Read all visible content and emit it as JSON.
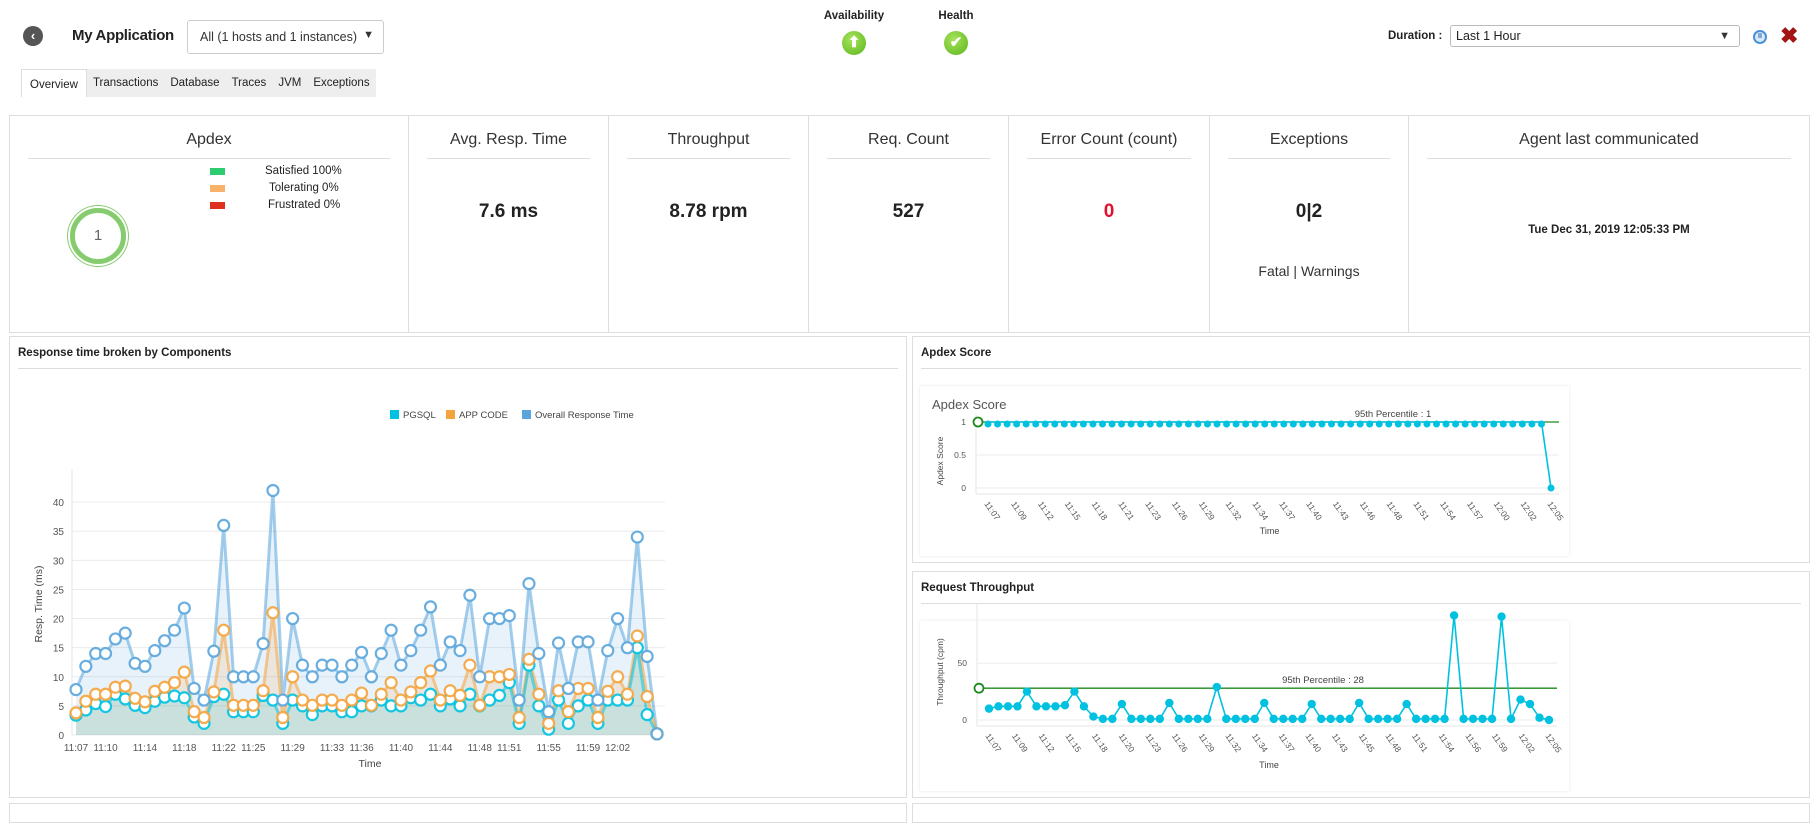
{
  "header": {
    "back_icon": "chevron-left-circle-icon",
    "app_title": "My Application",
    "host_select": "All (1 hosts and 1 instances)",
    "availability_label": "Availability",
    "availability_icon": "arrow-up-circle-icon",
    "health_label": "Health",
    "health_icon": "check-circle-icon",
    "duration_label": "Duration :",
    "duration_value": "Last 1 Hour",
    "pause_icon": "pause-icon",
    "close_icon": "close-icon"
  },
  "tabs": [
    {
      "label": "Overview",
      "active": true
    },
    {
      "label": "Transactions"
    },
    {
      "label": "Database"
    },
    {
      "label": "Traces"
    },
    {
      "label": "JVM"
    },
    {
      "label": "Exceptions"
    }
  ],
  "metrics": {
    "apdex": {
      "title": "Apdex",
      "score": "1",
      "legend": [
        {
          "label": "Satisfied 100%",
          "color": "#2ecc71"
        },
        {
          "label": "Tolerating 0%",
          "color": "#f8b26a"
        },
        {
          "label": "Frustrated 0%",
          "color": "#e03020"
        }
      ]
    },
    "avg_resp": {
      "title": "Avg. Resp. Time",
      "value": "7.6 ms"
    },
    "throughput": {
      "title": "Throughput",
      "value": "8.78 rpm"
    },
    "req_count": {
      "title": "Req. Count",
      "value": "527"
    },
    "error_count": {
      "title": "Error Count (count)",
      "value": "0",
      "color": "#e0102f"
    },
    "exceptions": {
      "title": "Exceptions",
      "value": "0|2",
      "sub": "Fatal | Warnings"
    },
    "agent": {
      "title": "Agent last communicated",
      "value": "Tue Dec 31, 2019 12:05:33 PM"
    }
  },
  "panels": {
    "response": "Response time broken by Components",
    "apdex": "Apdex Score",
    "throughput": "Request Throughput"
  },
  "chart_data": [
    {
      "type": "area",
      "title": "",
      "xlabel": "Time",
      "ylabel": "Resp. Time (ms)",
      "ylim": [
        0,
        45
      ],
      "yticks": [
        0,
        5,
        10,
        15,
        20,
        25,
        30,
        35,
        40
      ],
      "grid": true,
      "legend": "top-right",
      "xticks": [
        "11:07",
        "11:10",
        "11:14",
        "11:18",
        "11:22",
        "11:25",
        "11:29",
        "11:33",
        "11:36",
        "11:40",
        "11:44",
        "11:48",
        "11:51",
        "11:55",
        "11:59",
        "12:02"
      ],
      "xtick_index": [
        0,
        3,
        7,
        11,
        15,
        18,
        22,
        26,
        29,
        33,
        37,
        41,
        44,
        48,
        52,
        55
      ],
      "series": [
        {
          "name": "Overall Response Time",
          "color": "#5aa5dc",
          "values": [
            7.8,
            11.8,
            14,
            14,
            16.5,
            17.5,
            12.3,
            11.8,
            14.5,
            16.2,
            18,
            21.8,
            8,
            6,
            14.4,
            36,
            10,
            10,
            10,
            15.7,
            42,
            6,
            20,
            12,
            10,
            12,
            12,
            10,
            12,
            14.2,
            10,
            14,
            18,
            12,
            14.5,
            18,
            22,
            12,
            16,
            14.5,
            24,
            10,
            20,
            20,
            20.5,
            6,
            26,
            14,
            4,
            15.8,
            8,
            16,
            16,
            6,
            14.5,
            20,
            15,
            34,
            13.5,
            0.2
          ]
        },
        {
          "name": "APP CODE",
          "color": "#f5a33c",
          "values": [
            3.8,
            5.8,
            7,
            7,
            8.2,
            8.4,
            6.3,
            5.7,
            7.5,
            8.2,
            9,
            10.8,
            4,
            3,
            7.4,
            18,
            5.1,
            5.1,
            5.1,
            7.6,
            21,
            3,
            10,
            6,
            5.1,
            6,
            6,
            5.1,
            6,
            7.2,
            5.1,
            7,
            9,
            6,
            7.4,
            9,
            11,
            6,
            7.6,
            6.8,
            12,
            5.1,
            10,
            10,
            10.4,
            3,
            13,
            7,
            2,
            7.6,
            4,
            8,
            8,
            3,
            7.5,
            10,
            7,
            17,
            6.6,
            0.2
          ]
        },
        {
          "name": "PGSQL",
          "color": "#00c2e0",
          "values": [
            3.4,
            4.3,
            5.4,
            4.9,
            7,
            6.2,
            5.1,
            4.7,
            5.8,
            6.5,
            6.7,
            6.4,
            3.1,
            2,
            6.6,
            7,
            4,
            4,
            4,
            6.8,
            6,
            2,
            6,
            5,
            3.5,
            5,
            5,
            4,
            4,
            5,
            5,
            6,
            5,
            5,
            6.4,
            6,
            7,
            5,
            6.2,
            5,
            7,
            5,
            6,
            6.8,
            9,
            2,
            12,
            5,
            1,
            6,
            2,
            5,
            6,
            2,
            6,
            6,
            6,
            15,
            3.5,
            0.2
          ]
        }
      ]
    },
    {
      "type": "line",
      "title": "Apdex Score",
      "xlabel": "Time",
      "ylabel": "Apdex Score",
      "ylim": [
        0,
        1
      ],
      "yticks": [
        0,
        0.5,
        1
      ],
      "grid": true,
      "percentile_label": "95th Percentile : 1",
      "percentile": 1,
      "color": "#00c2e0",
      "percentile_color": "#1e8a1e",
      "xticks": [
        "11:07",
        "11:09",
        "11:12",
        "11:15",
        "11:18",
        "11:21",
        "11:23",
        "11:26",
        "11:29",
        "11:32",
        "11:34",
        "11:37",
        "11:40",
        "11:43",
        "11:46",
        "11:48",
        "11:51",
        "11:54",
        "11:57",
        "12:00",
        "12:02",
        "12:05"
      ],
      "values": [
        1,
        1,
        1,
        1,
        1,
        1,
        1,
        1,
        1,
        1,
        1,
        1,
        1,
        1,
        1,
        1,
        1,
        1,
        1,
        1,
        1,
        1,
        1,
        1,
        1,
        1,
        1,
        1,
        1,
        1,
        1,
        1,
        1,
        1,
        1,
        1,
        1,
        1,
        1,
        1,
        1,
        1,
        1,
        1,
        1,
        1,
        1,
        1,
        1,
        1,
        1,
        1,
        1,
        1,
        1,
        1,
        1,
        1,
        1,
        0
      ]
    },
    {
      "type": "line",
      "title": "",
      "xlabel": "Time",
      "ylabel": "Throughput (cpm)",
      "ylim": [
        0,
        95
      ],
      "yticks": [
        0,
        50
      ],
      "grid": true,
      "percentile_label": "95th Percentile : 28",
      "percentile": 28,
      "color": "#00c2e0",
      "percentile_color": "#1e8a1e",
      "xticks": [
        "11:07",
        "11:09",
        "11:12",
        "11:15",
        "11:18",
        "11:20",
        "11:23",
        "11:26",
        "11:29",
        "11:32",
        "11:34",
        "11:37",
        "11:40",
        "11:43",
        "11:45",
        "11:48",
        "11:51",
        "11:54",
        "11:56",
        "11:59",
        "12:02",
        "12:05"
      ],
      "values": [
        10,
        12,
        12,
        12,
        25,
        12,
        12,
        12,
        13,
        25,
        12,
        3,
        1,
        1,
        14,
        1,
        1,
        1,
        1,
        15,
        1,
        1,
        1,
        1,
        29,
        1,
        1,
        1,
        1,
        15,
        1,
        1,
        1,
        1,
        14,
        1,
        1,
        1,
        1,
        15,
        1,
        1,
        1,
        1,
        14,
        1,
        1,
        1,
        1,
        92,
        1,
        1,
        1,
        1,
        91,
        1,
        18,
        14,
        2,
        0
      ]
    }
  ]
}
